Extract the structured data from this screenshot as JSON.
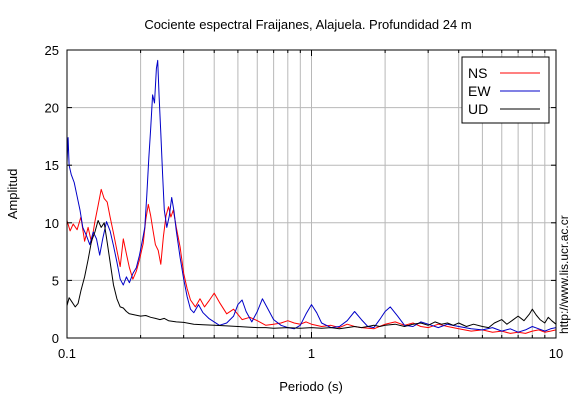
{
  "chart_data": {
    "type": "line",
    "title": "Cociente espectral Fraijanes, Alajuela. Profundidad 24 m",
    "xlabel": "Periodo (s)",
    "ylabel": "Amplitud",
    "x_scale": "log",
    "xlim": [
      0.1,
      10
    ],
    "ylim": [
      0,
      25
    ],
    "x_ticks": [
      {
        "value": 0.1,
        "label": "0.1"
      },
      {
        "value": 1,
        "label": "1"
      },
      {
        "value": 10,
        "label": "10"
      }
    ],
    "y_ticks": [
      {
        "value": 0,
        "label": "0"
      },
      {
        "value": 5,
        "label": "5"
      },
      {
        "value": 10,
        "label": "10"
      },
      {
        "value": 15,
        "label": "15"
      },
      {
        "value": 20,
        "label": "20"
      },
      {
        "value": 25,
        "label": "25"
      }
    ],
    "grid": true,
    "legend_position": "top-right",
    "credit": "http://www.lis.ucr.ac.cr",
    "series": [
      {
        "name": "NS",
        "color": "#ff0000",
        "points": [
          [
            0.1,
            10.2
          ],
          [
            0.103,
            9.3
          ],
          [
            0.106,
            9.9
          ],
          [
            0.11,
            9.4
          ],
          [
            0.114,
            10.5
          ],
          [
            0.118,
            8.4
          ],
          [
            0.122,
            9.6
          ],
          [
            0.126,
            8.3
          ],
          [
            0.13,
            10.1
          ],
          [
            0.134,
            11.5
          ],
          [
            0.138,
            12.9
          ],
          [
            0.142,
            12.1
          ],
          [
            0.146,
            11.8
          ],
          [
            0.15,
            10.5
          ],
          [
            0.155,
            9.1
          ],
          [
            0.16,
            7.6
          ],
          [
            0.165,
            6.2
          ],
          [
            0.17,
            8.6
          ],
          [
            0.175,
            7.3
          ],
          [
            0.18,
            6.1
          ],
          [
            0.186,
            5.1
          ],
          [
            0.192,
            5.8
          ],
          [
            0.198,
            6.8
          ],
          [
            0.205,
            8.2
          ],
          [
            0.21,
            10.3
          ],
          [
            0.215,
            11.6
          ],
          [
            0.22,
            10.6
          ],
          [
            0.225,
            9.3
          ],
          [
            0.23,
            8.1
          ],
          [
            0.236,
            7.6
          ],
          [
            0.242,
            6.4
          ],
          [
            0.248,
            8.8
          ],
          [
            0.254,
            10.6
          ],
          [
            0.26,
            11.4
          ],
          [
            0.266,
            10.5
          ],
          [
            0.272,
            11.1
          ],
          [
            0.28,
            9.6
          ],
          [
            0.29,
            7.9
          ],
          [
            0.3,
            5.6
          ],
          [
            0.31,
            4.3
          ],
          [
            0.32,
            3.3
          ],
          [
            0.335,
            2.7
          ],
          [
            0.35,
            3.4
          ],
          [
            0.365,
            2.7
          ],
          [
            0.38,
            3.2
          ],
          [
            0.4,
            3.9
          ],
          [
            0.42,
            3.1
          ],
          [
            0.45,
            2.1
          ],
          [
            0.48,
            2.5
          ],
          [
            0.52,
            1.6
          ],
          [
            0.56,
            1.8
          ],
          [
            0.6,
            1.5
          ],
          [
            0.65,
            1.1
          ],
          [
            0.7,
            1.2
          ],
          [
            0.75,
            1.3
          ],
          [
            0.8,
            1.5
          ],
          [
            0.85,
            1.3
          ],
          [
            0.9,
            1.2
          ],
          [
            0.95,
            1.4
          ],
          [
            1.0,
            1.2
          ],
          [
            1.1,
            1.0
          ],
          [
            1.2,
            1.1
          ],
          [
            1.3,
            0.9
          ],
          [
            1.4,
            1.2
          ],
          [
            1.5,
            1.0
          ],
          [
            1.6,
            0.9
          ],
          [
            1.8,
            0.8
          ],
          [
            2.0,
            1.2
          ],
          [
            2.2,
            1.4
          ],
          [
            2.4,
            1.1
          ],
          [
            2.6,
            1.3
          ],
          [
            2.8,
            1.0
          ],
          [
            3.0,
            0.9
          ],
          [
            3.3,
            1.2
          ],
          [
            3.6,
            1.0
          ],
          [
            4.0,
            0.8
          ],
          [
            4.5,
            0.6
          ],
          [
            5.0,
            0.7
          ],
          [
            5.5,
            0.5
          ],
          [
            6.0,
            0.6
          ],
          [
            6.5,
            0.4
          ],
          [
            7.0,
            0.5
          ],
          [
            7.5,
            0.4
          ],
          [
            8.0,
            0.6
          ],
          [
            8.5,
            0.7
          ],
          [
            9.0,
            0.5
          ],
          [
            9.5,
            0.6
          ],
          [
            10.0,
            0.7
          ]
        ]
      },
      {
        "name": "EW",
        "color": "#0000c8",
        "points": [
          [
            0.1,
            15.2
          ],
          [
            0.101,
            17.4
          ],
          [
            0.102,
            15.0
          ],
          [
            0.104,
            14.2
          ],
          [
            0.107,
            13.5
          ],
          [
            0.11,
            12.3
          ],
          [
            0.113,
            11.1
          ],
          [
            0.116,
            9.6
          ],
          [
            0.12,
            8.9
          ],
          [
            0.124,
            8.1
          ],
          [
            0.128,
            9.2
          ],
          [
            0.132,
            8.6
          ],
          [
            0.136,
            7.2
          ],
          [
            0.14,
            8.6
          ],
          [
            0.145,
            10.1
          ],
          [
            0.15,
            9.3
          ],
          [
            0.155,
            8.0
          ],
          [
            0.16,
            6.6
          ],
          [
            0.165,
            5.1
          ],
          [
            0.17,
            4.6
          ],
          [
            0.175,
            5.3
          ],
          [
            0.18,
            4.8
          ],
          [
            0.186,
            5.6
          ],
          [
            0.192,
            6.1
          ],
          [
            0.198,
            7.2
          ],
          [
            0.204,
            8.6
          ],
          [
            0.208,
            9.6
          ],
          [
            0.212,
            12.4
          ],
          [
            0.216,
            15.6
          ],
          [
            0.22,
            18.2
          ],
          [
            0.224,
            21.1
          ],
          [
            0.228,
            20.4
          ],
          [
            0.232,
            23.4
          ],
          [
            0.235,
            24.1
          ],
          [
            0.238,
            21.0
          ],
          [
            0.242,
            17.8
          ],
          [
            0.246,
            14.2
          ],
          [
            0.25,
            11.1
          ],
          [
            0.256,
            9.6
          ],
          [
            0.262,
            10.6
          ],
          [
            0.268,
            12.2
          ],
          [
            0.274,
            11.0
          ],
          [
            0.28,
            9.3
          ],
          [
            0.29,
            7.0
          ],
          [
            0.3,
            5.1
          ],
          [
            0.31,
            3.6
          ],
          [
            0.32,
            2.5
          ],
          [
            0.33,
            2.2
          ],
          [
            0.345,
            2.9
          ],
          [
            0.36,
            2.2
          ],
          [
            0.38,
            1.7
          ],
          [
            0.4,
            1.4
          ],
          [
            0.42,
            1.1
          ],
          [
            0.45,
            1.3
          ],
          [
            0.48,
            1.9
          ],
          [
            0.5,
            2.9
          ],
          [
            0.52,
            3.3
          ],
          [
            0.54,
            2.3
          ],
          [
            0.57,
            1.4
          ],
          [
            0.6,
            2.3
          ],
          [
            0.63,
            3.4
          ],
          [
            0.66,
            2.6
          ],
          [
            0.7,
            1.6
          ],
          [
            0.75,
            1.1
          ],
          [
            0.8,
            0.9
          ],
          [
            0.85,
            0.8
          ],
          [
            0.9,
            1.1
          ],
          [
            0.95,
            2.1
          ],
          [
            1.0,
            2.9
          ],
          [
            1.05,
            2.2
          ],
          [
            1.1,
            1.3
          ],
          [
            1.2,
            0.9
          ],
          [
            1.3,
            1.0
          ],
          [
            1.4,
            1.5
          ],
          [
            1.5,
            2.3
          ],
          [
            1.6,
            1.6
          ],
          [
            1.7,
            1.0
          ],
          [
            1.8,
            0.9
          ],
          [
            1.9,
            1.6
          ],
          [
            2.0,
            2.3
          ],
          [
            2.1,
            2.7
          ],
          [
            2.25,
            1.9
          ],
          [
            2.4,
            1.1
          ],
          [
            2.6,
            1.0
          ],
          [
            2.8,
            1.4
          ],
          [
            3.0,
            1.2
          ],
          [
            3.3,
            0.9
          ],
          [
            3.6,
            1.2
          ],
          [
            4.0,
            1.0
          ],
          [
            4.5,
            0.8
          ],
          [
            5.0,
            0.7
          ],
          [
            5.5,
            0.9
          ],
          [
            6.0,
            0.6
          ],
          [
            6.5,
            0.8
          ],
          [
            7.0,
            0.5
          ],
          [
            7.5,
            0.7
          ],
          [
            8.0,
            1.0
          ],
          [
            8.5,
            0.8
          ],
          [
            9.0,
            0.6
          ],
          [
            9.5,
            0.8
          ],
          [
            10.0,
            0.9
          ]
        ]
      },
      {
        "name": "UD",
        "color": "#000000",
        "points": [
          [
            0.1,
            2.8
          ],
          [
            0.102,
            3.5
          ],
          [
            0.105,
            3.1
          ],
          [
            0.108,
            2.7
          ],
          [
            0.111,
            3.0
          ],
          [
            0.114,
            4.1
          ],
          [
            0.118,
            5.3
          ],
          [
            0.122,
            6.8
          ],
          [
            0.126,
            8.4
          ],
          [
            0.13,
            9.2
          ],
          [
            0.134,
            10.2
          ],
          [
            0.138,
            9.6
          ],
          [
            0.142,
            10.0
          ],
          [
            0.146,
            8.3
          ],
          [
            0.15,
            6.6
          ],
          [
            0.155,
            4.6
          ],
          [
            0.16,
            3.4
          ],
          [
            0.165,
            2.7
          ],
          [
            0.17,
            2.6
          ],
          [
            0.175,
            2.3
          ],
          [
            0.18,
            2.1
          ],
          [
            0.19,
            2.0
          ],
          [
            0.2,
            1.9
          ],
          [
            0.21,
            1.95
          ],
          [
            0.22,
            1.8
          ],
          [
            0.23,
            1.7
          ],
          [
            0.24,
            1.6
          ],
          [
            0.25,
            1.7
          ],
          [
            0.26,
            1.5
          ],
          [
            0.28,
            1.4
          ],
          [
            0.3,
            1.35
          ],
          [
            0.33,
            1.2
          ],
          [
            0.36,
            1.15
          ],
          [
            0.4,
            1.1
          ],
          [
            0.45,
            1.05
          ],
          [
            0.5,
            1.0
          ],
          [
            0.55,
            0.95
          ],
          [
            0.6,
            0.9
          ],
          [
            0.65,
            0.9
          ],
          [
            0.7,
            0.85
          ],
          [
            0.8,
            0.9
          ],
          [
            0.9,
            0.85
          ],
          [
            1.0,
            0.9
          ],
          [
            1.1,
            0.85
          ],
          [
            1.2,
            0.9
          ],
          [
            1.3,
            0.8
          ],
          [
            1.4,
            0.9
          ],
          [
            1.5,
            1.0
          ],
          [
            1.6,
            0.9
          ],
          [
            1.7,
            1.0
          ],
          [
            1.8,
            1.1
          ],
          [
            1.9,
            1.0
          ],
          [
            2.0,
            1.1
          ],
          [
            2.2,
            1.2
          ],
          [
            2.4,
            1.0
          ],
          [
            2.6,
            1.2
          ],
          [
            2.8,
            1.3
          ],
          [
            3.0,
            1.1
          ],
          [
            3.2,
            1.4
          ],
          [
            3.4,
            1.2
          ],
          [
            3.6,
            1.3
          ],
          [
            3.8,
            1.1
          ],
          [
            4.0,
            1.3
          ],
          [
            4.3,
            1.0
          ],
          [
            4.6,
            1.2
          ],
          [
            5.0,
            1.0
          ],
          [
            5.3,
            0.9
          ],
          [
            5.6,
            1.3
          ],
          [
            6.0,
            1.6
          ],
          [
            6.3,
            1.2
          ],
          [
            6.6,
            1.5
          ],
          [
            7.0,
            1.9
          ],
          [
            7.4,
            1.5
          ],
          [
            7.8,
            2.1
          ],
          [
            8.0,
            2.5
          ],
          [
            8.3,
            2.0
          ],
          [
            8.6,
            1.6
          ],
          [
            9.0,
            1.3
          ],
          [
            9.3,
            1.8
          ],
          [
            9.6,
            1.5
          ],
          [
            10.0,
            1.2
          ]
        ]
      }
    ]
  }
}
